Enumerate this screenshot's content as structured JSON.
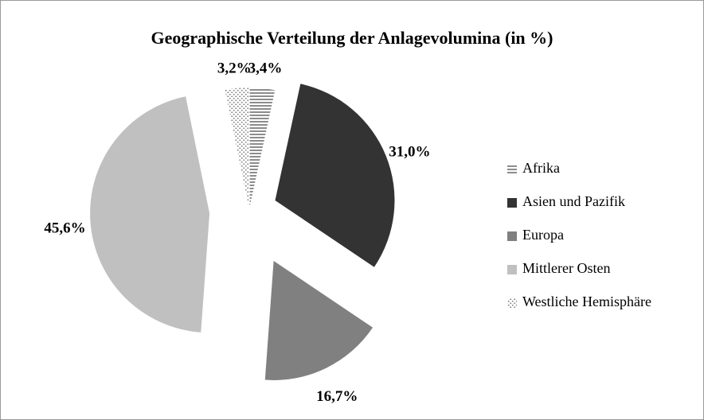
{
  "chart_data": {
    "type": "pie",
    "title": "Geographische Verteilung der Anlagevolumina (in %)",
    "categories": [
      "Afrika",
      "Asien und Pazifik",
      "Europa",
      "Mittlerer Osten",
      "Westliche Hemisphäre"
    ],
    "values": [
      3.4,
      31.0,
      16.7,
      45.6,
      3.2
    ],
    "value_labels": [
      "3,4%",
      "31,0%",
      "16,7%",
      "45,6%",
      "3,2%"
    ],
    "colors": [
      "#8c8c8c",
      "#333333",
      "#808080",
      "#c0c0c0",
      "#8c8c8c"
    ],
    "patterns": [
      "stripes",
      null,
      null,
      null,
      "dots"
    ],
    "legend": "right"
  }
}
